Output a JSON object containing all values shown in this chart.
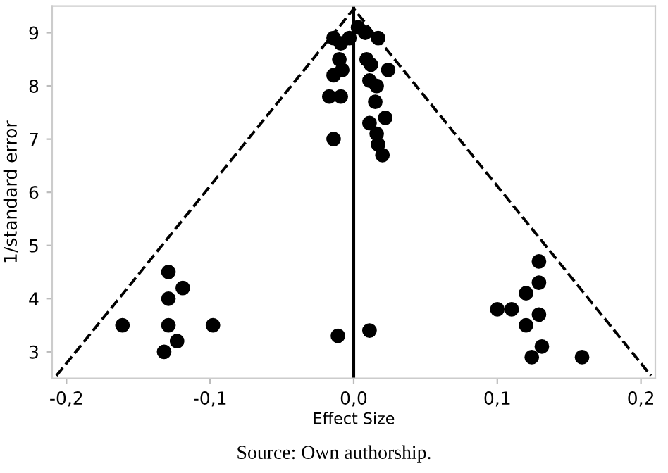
{
  "chart_data": {
    "type": "scatter",
    "xlabel": "Effect Size",
    "ylabel": "1/standard error",
    "series": [
      {
        "color": "#000000",
        "marker": "circle",
        "x": [
          -0.014,
          -0.009,
          -0.003,
          0.003,
          0.008,
          0.017,
          -0.01,
          -0.008,
          -0.014,
          0.009,
          0.012,
          0.024,
          0.011,
          0.016,
          -0.017,
          -0.009,
          0.015,
          0.022,
          0.011,
          0.016,
          0.017,
          0.02,
          -0.014,
          -0.161,
          -0.129,
          -0.119,
          -0.129,
          -0.129,
          -0.098,
          -0.123,
          -0.132,
          -0.011,
          0.011,
          0.129,
          0.129,
          0.12,
          0.1,
          0.11,
          0.129,
          0.12,
          0.131,
          0.124,
          0.159
        ],
        "values": [
          8.9,
          8.8,
          8.9,
          9.1,
          9.0,
          8.9,
          8.5,
          8.3,
          8.2,
          8.5,
          8.4,
          8.3,
          8.1,
          8.0,
          7.8,
          7.8,
          7.7,
          7.4,
          7.3,
          7.1,
          6.9,
          6.7,
          7.0,
          3.5,
          4.5,
          4.2,
          4.0,
          3.5,
          3.5,
          3.2,
          3.0,
          3.3,
          3.4,
          4.7,
          4.3,
          4.1,
          3.8,
          3.8,
          3.7,
          3.5,
          3.1,
          2.9,
          2.9
        ]
      },
      {
        "type": "line",
        "color": "#000000",
        "line_style": "dashed",
        "marker": "none",
        "x": [
          -0.207,
          0,
          0.207
        ],
        "values": [
          2.55,
          9.45,
          2.55
        ]
      }
    ],
    "ref_lines": [
      {
        "axis": "x",
        "value": 0,
        "color": "#000000",
        "line_style": "solid"
      }
    ],
    "xlim": [
      -0.21,
      0.21
    ],
    "ylim": [
      2.5,
      9.5
    ],
    "xticks": [
      {
        "value": -0.2,
        "label": "-0,2"
      },
      {
        "value": -0.1,
        "label": "-0,1"
      },
      {
        "value": 0,
        "label": "0,0"
      },
      {
        "value": 0.1,
        "label": "0,1"
      },
      {
        "value": 0.2,
        "label": "0,2"
      }
    ],
    "yticks": [
      3,
      4,
      5,
      6,
      7,
      8,
      9
    ],
    "grid": false,
    "legend": false,
    "annotations": [
      "Source: Own authorship."
    ]
  }
}
